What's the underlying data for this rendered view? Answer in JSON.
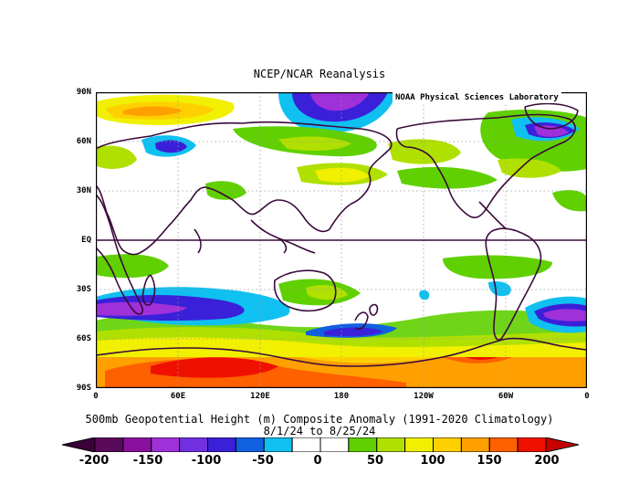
{
  "title": "NCEP/NCAR Reanalysis",
  "credit": "NOAA Physical Sciences Laboratory",
  "caption": {
    "line1": "500mb Geopotential Height (m) Composite Anomaly (1991-2020 Climatology)",
    "line2": "8/1/24  to 8/25/24"
  },
  "map": {
    "lat_labels": [
      "90N",
      "60N",
      "30N",
      "EQ",
      "30S",
      "60S",
      "90S"
    ],
    "lon_labels": [
      "0",
      "60E",
      "120E",
      "180",
      "120W",
      "60W",
      "0"
    ],
    "colors": {
      "coastline": "#3a0a3a",
      "grid": "#9a9a9a",
      "equator": "#3a0a3a"
    }
  },
  "colorbar": {
    "labels": [
      "-200",
      "-150",
      "-100",
      "-50",
      "0",
      "50",
      "100",
      "150",
      "200"
    ],
    "colors": [
      "#5a0a5a",
      "#8a10a0",
      "#a030d8",
      "#7030e0",
      "#3a20d8",
      "#1060e0",
      "#10c0f0",
      "#ffffff",
      "#ffffff",
      "#60d000",
      "#b0e000",
      "#f0f000",
      "#ffd000",
      "#ffa000",
      "#ff6000",
      "#f01000"
    ],
    "end_low": "#3a003a",
    "end_high": "#c80000"
  }
}
